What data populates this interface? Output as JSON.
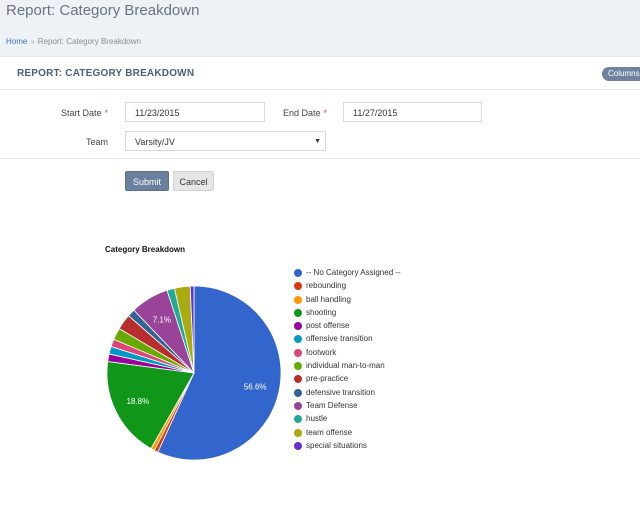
{
  "page": {
    "title": "Report: Category Breakdown"
  },
  "breadcrumb": {
    "home": "Home",
    "separator": "»",
    "current": "Report: Category Breakdown"
  },
  "card": {
    "title": "REPORT: CATEGORY BREAKDOWN",
    "columns_label": "Columns"
  },
  "form": {
    "start_date_label": "Start Date",
    "start_date_value": "11/23/2015",
    "end_date_label": "End Date",
    "end_date_value": "11/27/2015",
    "required_mark": "*",
    "team_label": "Team",
    "team_value": "Varsity/JV",
    "submit_label": "Submit",
    "cancel_label": "Cancel"
  },
  "chart_data": {
    "type": "pie",
    "title": "Category Breakdown",
    "legend_position": "right",
    "slices": [
      {
        "label": "-- No Category Assigned --",
        "value": 56.6,
        "color": "#3366cc",
        "show_label": true
      },
      {
        "label": "rebounding",
        "value": 0.7,
        "color": "#dc3912",
        "show_label": false
      },
      {
        "label": "ball handling",
        "value": 0.7,
        "color": "#ff9900",
        "show_label": false
      },
      {
        "label": "shooting",
        "value": 18.8,
        "color": "#109618",
        "show_label": true
      },
      {
        "label": "post offense",
        "value": 1.4,
        "color": "#990099",
        "show_label": false
      },
      {
        "label": "offensive transition",
        "value": 1.4,
        "color": "#0099c6",
        "show_label": false
      },
      {
        "label": "footwork",
        "value": 1.4,
        "color": "#dd4477",
        "show_label": false
      },
      {
        "label": "individual man-to-man",
        "value": 2.2,
        "color": "#66aa00",
        "show_label": false
      },
      {
        "label": "pre-practice",
        "value": 2.9,
        "color": "#b82e2e",
        "show_label": false
      },
      {
        "label": "defensive transition",
        "value": 1.4,
        "color": "#316395",
        "show_label": false
      },
      {
        "label": "Team Defense",
        "value": 7.1,
        "color": "#994499",
        "show_label": true
      },
      {
        "label": "hustle",
        "value": 1.4,
        "color": "#22aa99",
        "show_label": false
      },
      {
        "label": "team offense",
        "value": 2.9,
        "color": "#aaaa11",
        "show_label": false
      },
      {
        "label": "special situations",
        "value": 0.7,
        "color": "#6633cc",
        "show_label": false
      }
    ],
    "display_labels": {
      "0": "56.6%",
      "3": "18.8%",
      "10": "7.1%"
    }
  }
}
